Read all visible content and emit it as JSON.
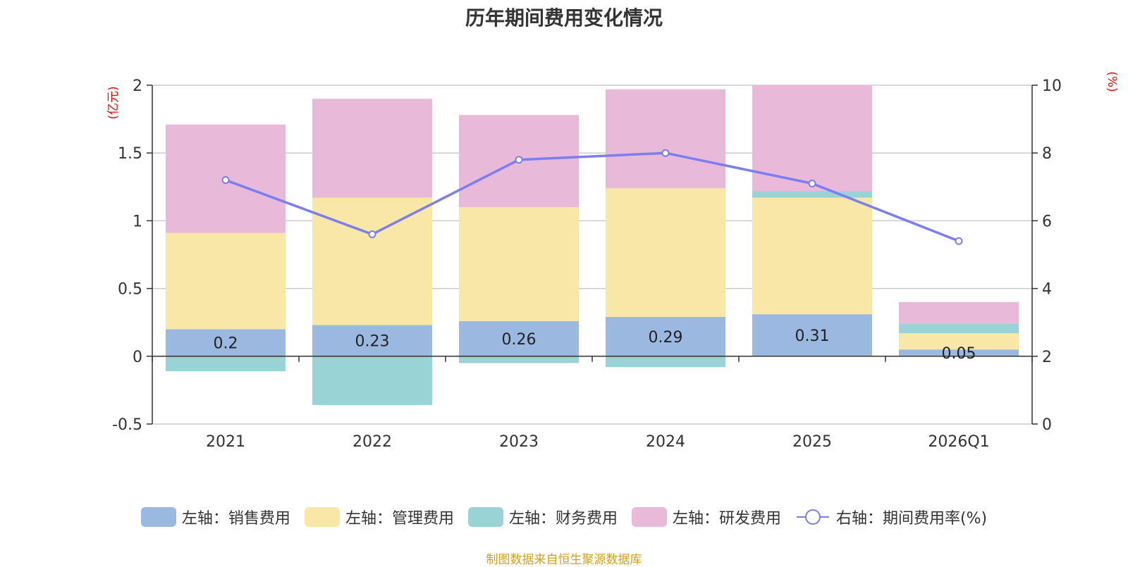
{
  "chart_data": {
    "type": "bar",
    "stacked": true,
    "title": "历年期间费用变化情况",
    "categories": [
      "2021",
      "2022",
      "2023",
      "2024",
      "2025",
      "2026Q1"
    ],
    "left_axis": {
      "unit": "(亿元)",
      "ylim": [
        -0.5,
        2
      ],
      "ticks": [
        "-0.5",
        "0",
        "0.5",
        "1",
        "1.5",
        "2"
      ]
    },
    "right_axis": {
      "unit": "(%)",
      "ylim": [
        0,
        10
      ],
      "ticks": [
        "0",
        "2",
        "4",
        "6",
        "8",
        "10"
      ]
    },
    "series": [
      {
        "name": "左轴：销售费用",
        "axis": "left",
        "type": "bar",
        "color": "#9bb8e0",
        "values": [
          0.2,
          0.23,
          0.26,
          0.29,
          0.31,
          0.05
        ],
        "labels": [
          "0.2",
          "0.23",
          "0.26",
          "0.29",
          "0.31",
          "0.05"
        ]
      },
      {
        "name": "左轴：管理费用",
        "axis": "left",
        "type": "bar",
        "color": "#f8e7a6",
        "values": [
          0.71,
          0.94,
          0.84,
          0.95,
          0.86,
          0.12
        ]
      },
      {
        "name": "左轴：财务费用",
        "axis": "left",
        "type": "bar",
        "color": "#99d3d5",
        "values": [
          -0.11,
          -0.36,
          -0.05,
          -0.08,
          0.05,
          0.07
        ]
      },
      {
        "name": "左轴：研发费用",
        "axis": "left",
        "type": "bar",
        "color": "#e8b9d9",
        "values": [
          0.8,
          0.73,
          0.68,
          0.73,
          0.78,
          0.16
        ]
      },
      {
        "name": "右轴：期间费用率(%)",
        "axis": "right",
        "type": "line",
        "color": "#7b7ef0",
        "values": [
          7.2,
          5.6,
          7.8,
          8.0,
          7.1,
          5.4
        ]
      }
    ]
  },
  "footer": {
    "source": "制图数据来自恒生聚源数据库"
  }
}
